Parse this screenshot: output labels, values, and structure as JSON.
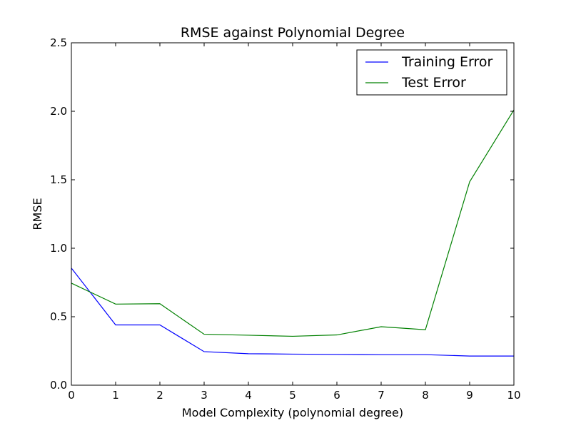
{
  "chart_data": {
    "type": "line",
    "title": "RMSE against Polynomial Degree",
    "xlabel": "Model Complexity (polynomial degree)",
    "ylabel": "RMSE",
    "xlim": [
      0,
      10
    ],
    "ylim": [
      0.0,
      2.5
    ],
    "x": [
      0,
      1,
      2,
      3,
      4,
      5,
      6,
      7,
      8,
      9,
      10
    ],
    "xticks": [
      "0",
      "1",
      "2",
      "3",
      "4",
      "5",
      "6",
      "7",
      "8",
      "9",
      "10"
    ],
    "yticks": [
      "0.0",
      "0.5",
      "1.0",
      "1.5",
      "2.0",
      "2.5"
    ],
    "grid": false,
    "legend_position": "top-right",
    "series": [
      {
        "name": "Training Error",
        "color": "#0000ff",
        "values": [
          0.855,
          0.44,
          0.44,
          0.245,
          0.23,
          0.227,
          0.225,
          0.223,
          0.223,
          0.213,
          0.213
        ]
      },
      {
        "name": "Test Error",
        "color": "#008000",
        "values": [
          0.745,
          0.592,
          0.595,
          0.372,
          0.365,
          0.357,
          0.367,
          0.427,
          0.405,
          1.485,
          2.01
        ]
      }
    ]
  }
}
